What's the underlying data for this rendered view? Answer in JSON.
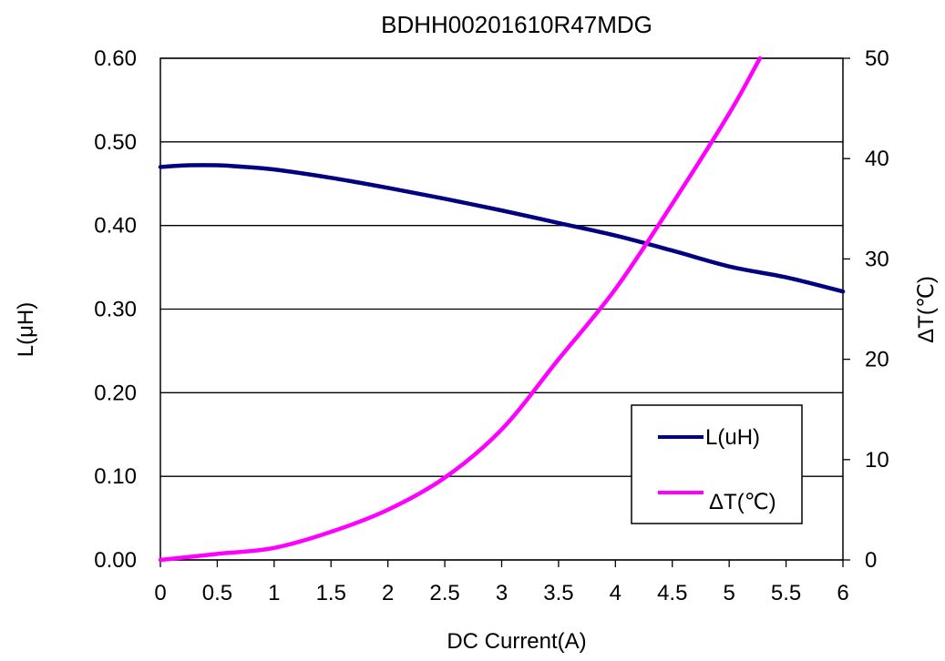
{
  "chart_data": {
    "type": "line",
    "title": "BDHH00201610R47MDG",
    "xlabel": "DC Current(A)",
    "ylabel_left": "L(μH)",
    "ylabel_right": "ΔT(℃)",
    "xlim": [
      0,
      6
    ],
    "ylim_left": [
      0,
      0.6
    ],
    "ylim_right": [
      0,
      50
    ],
    "x_ticks": [
      "0",
      "0.5",
      "1",
      "1.5",
      "2",
      "2.5",
      "3",
      "3.5",
      "4",
      "4.5",
      "5",
      "5.5",
      "6"
    ],
    "y_left_ticks": [
      "0.00",
      "0.10",
      "0.20",
      "0.30",
      "0.40",
      "0.50",
      "0.60"
    ],
    "y_right_ticks": [
      "0",
      "10",
      "20",
      "30",
      "40",
      "50"
    ],
    "grid": "horizontal",
    "legend_position": "bottom-right",
    "series": [
      {
        "name": "L(uH)",
        "axis": "left",
        "color": "#000080",
        "x": [
          0,
          0.25,
          0.5,
          0.75,
          1,
          1.5,
          2,
          2.5,
          3,
          3.5,
          4,
          4.5,
          5,
          5.5,
          6
        ],
        "values": [
          0.47,
          0.472,
          0.472,
          0.47,
          0.467,
          0.457,
          0.445,
          0.432,
          0.418,
          0.403,
          0.388,
          0.37,
          0.351,
          0.338,
          0.321
        ]
      },
      {
        "name": "ΔT(℃)",
        "axis": "right",
        "color": "#FF00FF",
        "x": [
          0,
          0.5,
          1,
          1.5,
          2,
          2.5,
          3,
          3.5,
          4,
          4.5,
          5,
          5.27
        ],
        "values": [
          0,
          0.6,
          1.2,
          2.8,
          5.0,
          8.2,
          13.0,
          20.0,
          27.0,
          35.5,
          44.5,
          50.0
        ]
      }
    ]
  }
}
